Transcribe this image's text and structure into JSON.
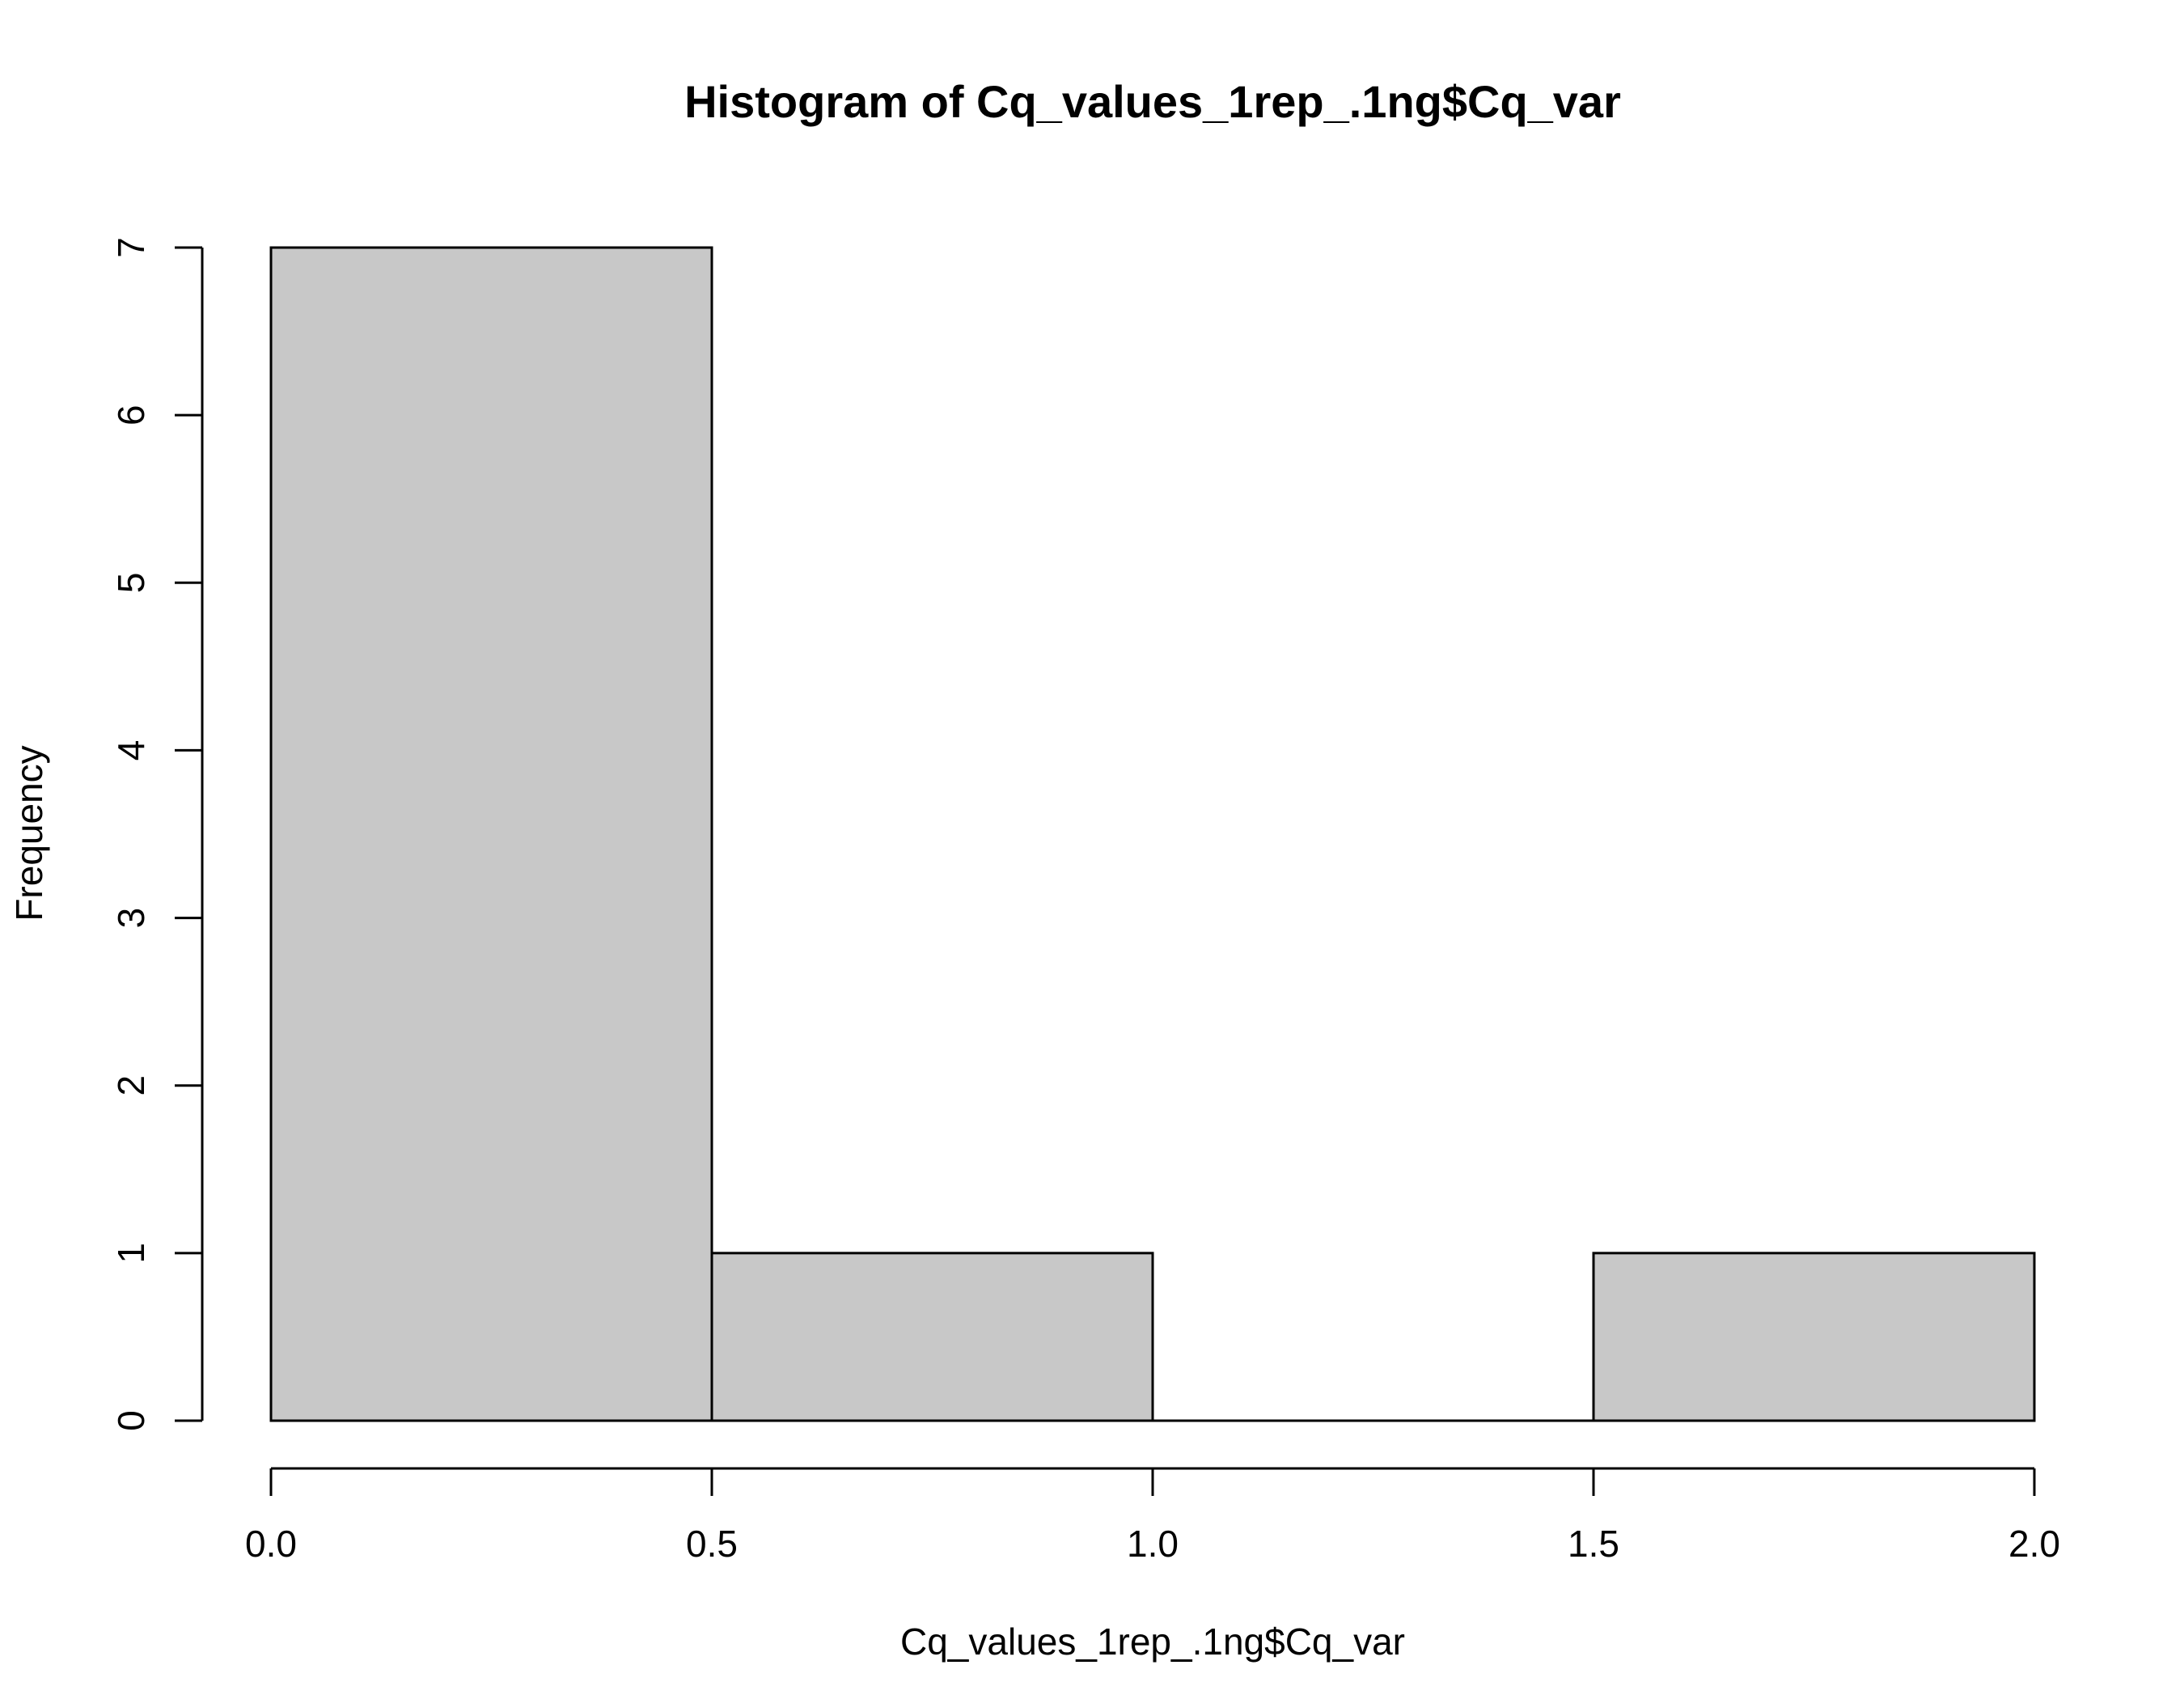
{
  "chart_data": {
    "type": "bar",
    "title": "Histogram of Cq_values_1rep_.1ng$Cq_var",
    "xlabel": "Cq_values_1rep_.1ng$Cq_var",
    "ylabel": "Frequency",
    "bins": [
      {
        "x0": 0.0,
        "x1": 0.5,
        "count": 7
      },
      {
        "x0": 0.5,
        "x1": 1.0,
        "count": 1
      },
      {
        "x0": 1.0,
        "x1": 1.5,
        "count": 0
      },
      {
        "x0": 1.5,
        "x1": 2.0,
        "count": 1
      }
    ],
    "xlim": [
      0.0,
      2.0
    ],
    "ylim": [
      0,
      7
    ],
    "x_ticks": [
      "0.0",
      "0.5",
      "1.0",
      "1.5",
      "2.0"
    ],
    "y_ticks": [
      "0",
      "1",
      "2",
      "3",
      "4",
      "5",
      "6",
      "7"
    ],
    "bar_fill": "#c8c8c8",
    "bar_stroke": "#000000",
    "grid": false,
    "legend": "none"
  }
}
